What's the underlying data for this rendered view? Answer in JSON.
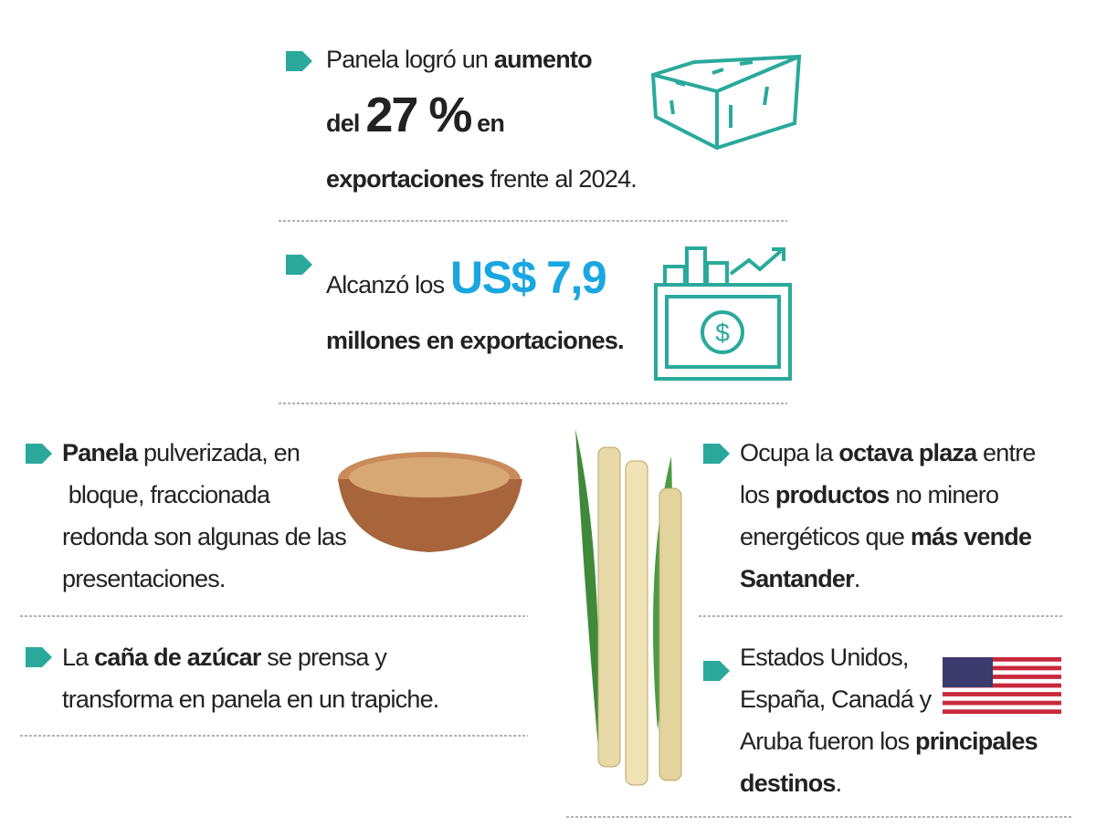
{
  "accent": "#2aa99b",
  "items": [
    {
      "lines": [
        [
          {
            "t": "Panela logró un "
          },
          {
            "t": "aumento",
            "s": "b"
          }
        ],
        [
          {
            "t": "del ",
            "s": "b"
          },
          {
            "t": "27 %",
            "s": "big"
          },
          {
            "t": " en",
            "s": "b"
          }
        ],
        [
          {
            "t": "exportaciones",
            "s": "b"
          },
          {
            "t": " frente al 2024."
          }
        ]
      ]
    },
    {
      "lines": [
        [
          {
            "t": "Alcanzó los "
          },
          {
            "t": "US$ 7,9",
            "s": "blue"
          }
        ],
        [
          {
            "t": "millones en exportaciones.",
            "s": "b"
          }
        ]
      ]
    },
    {
      "lines": [
        [
          {
            "t": "Panela",
            "s": "b"
          },
          {
            "t": " pulverizada, en"
          }
        ],
        [
          {
            "t": " bloque, fraccionada"
          }
        ],
        [
          {
            "t": "redonda son algunas de las"
          }
        ],
        [
          {
            "t": "presentaciones."
          }
        ]
      ]
    },
    {
      "lines": [
        [
          {
            "t": "La "
          },
          {
            "t": "caña de azúcar",
            "s": "b"
          },
          {
            "t": " se prensa y"
          }
        ],
        [
          {
            "t": "transforma en panela en un trapiche."
          }
        ]
      ]
    },
    {
      "lines": [
        [
          {
            "t": "Ocupa la "
          },
          {
            "t": "octava plaza",
            "s": "b"
          },
          {
            "t": " entre"
          }
        ],
        [
          {
            "t": "los "
          },
          {
            "t": "productos",
            "s": "b"
          },
          {
            "t": " no minero"
          }
        ],
        [
          {
            "t": "energéticos que "
          },
          {
            "t": "más vende",
            "s": "b"
          }
        ],
        [
          {
            "t": "Santander",
            "s": "b"
          },
          {
            "t": "."
          }
        ]
      ]
    },
    {
      "lines": [
        [
          {
            "t": "Estados Unidos,"
          }
        ],
        [
          {
            "t": "España, Canadá y"
          }
        ],
        [
          {
            "t": "Aruba fueron los "
          },
          {
            "t": "principales",
            "s": "b"
          }
        ],
        [
          {
            "t": "destinos",
            "s": "b"
          },
          {
            "t": "."
          }
        ]
      ]
    }
  ]
}
